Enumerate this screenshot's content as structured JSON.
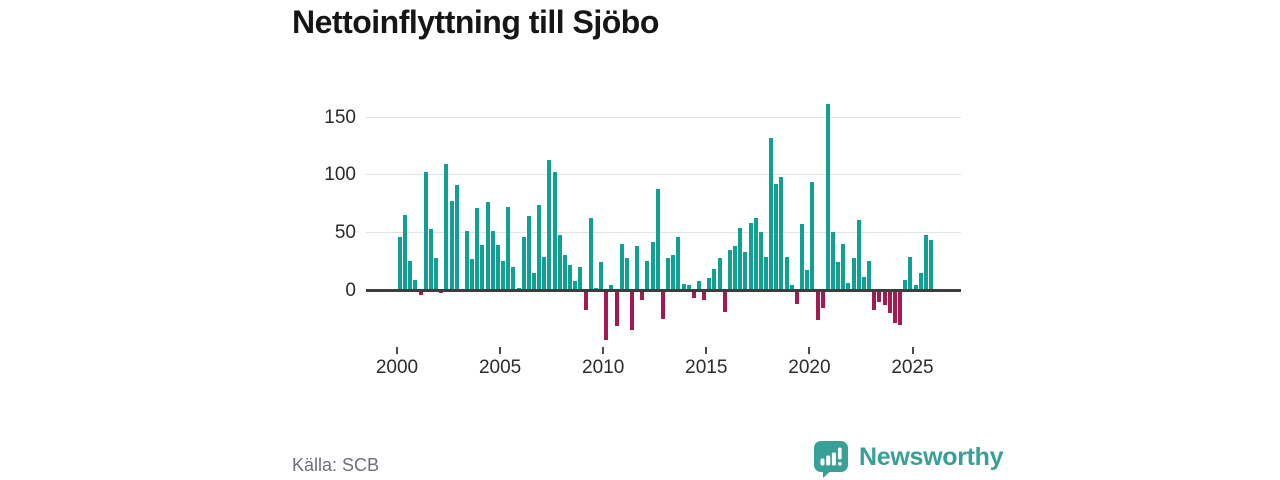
{
  "page": {
    "title": "Nettoinflyttning till Sjöbo",
    "source": "Källa: SCB"
  },
  "brand": {
    "name": "Newsworthy"
  },
  "colors": {
    "positive_bar": "#12a095",
    "negative_bar": "#a11a52",
    "grid": "#e2e2e2",
    "zero_line": "#3d3d3d",
    "tick": "#4a4a4a",
    "axis_label": "#2b2b2b",
    "source_text": "#6d7079",
    "brand_teal": "#38a096",
    "title_text": "#161616",
    "background": "#ffffff"
  },
  "chart_data": {
    "type": "bar",
    "title": "Nettoinflyttning till Sjöbo",
    "period": "quarterly",
    "x_start": 2000,
    "x_end": 2025,
    "x_tick_labels": [
      "2000",
      "2005",
      "2010",
      "2015",
      "2020",
      "2025"
    ],
    "y_ticks": [
      0,
      50,
      100,
      150
    ],
    "ylim": [
      -50,
      165
    ],
    "grid": true,
    "legend": false,
    "series_name": "Nettoinflyttning",
    "values": [
      46,
      65,
      25,
      9,
      -4,
      102,
      53,
      28,
      -3,
      109,
      77,
      91,
      -2,
      51,
      27,
      71,
      39,
      76,
      51,
      39,
      25,
      72,
      20,
      2,
      46,
      64,
      15,
      74,
      29,
      113,
      102,
      48,
      30,
      22,
      8,
      20,
      -17,
      62,
      2,
      24,
      -43,
      4,
      -31,
      40,
      28,
      -35,
      38,
      -9,
      25,
      42,
      88,
      -25,
      28,
      30,
      46,
      5,
      4,
      -7,
      8,
      -9,
      10,
      18,
      28,
      -19,
      35,
      38,
      54,
      33,
      58,
      62,
      50,
      29,
      132,
      92,
      98,
      29,
      4,
      -12,
      57,
      17,
      94,
      -26,
      -16,
      161,
      50,
      24,
      40,
      6,
      28,
      61,
      11,
      25,
      -17,
      -10,
      -13,
      -20,
      -29,
      -30,
      9,
      29,
      4,
      15,
      48,
      43
    ]
  }
}
